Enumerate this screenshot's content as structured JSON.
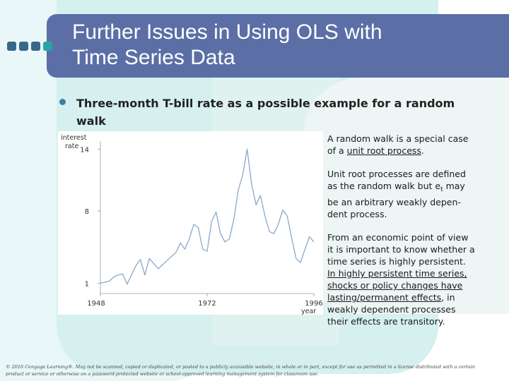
{
  "slide": {
    "title_line1": "Further Issues in Using OLS with",
    "title_line2": "Time Series Data",
    "bullet_line1": "Three-month T-bill rate as a possible example for a random",
    "bullet_line2": "walk"
  },
  "chart_data": {
    "type": "line",
    "ylabel_line1": "interest",
    "ylabel_line2": "rate",
    "xlabel": "year",
    "y_ticks": [
      1,
      8,
      14
    ],
    "x_ticks": [
      1948,
      1972,
      1996
    ],
    "xlim": [
      1948,
      1996
    ],
    "ylim": [
      0,
      14.5
    ],
    "series": [
      {
        "x": [
          1948,
          1949,
          1950,
          1951,
          1952,
          1953,
          1954,
          1955,
          1956,
          1957,
          1958,
          1959,
          1960,
          1961,
          1962,
          1963,
          1964,
          1965,
          1966,
          1967,
          1968,
          1969,
          1970,
          1971,
          1972,
          1973,
          1974,
          1975,
          1976,
          1977,
          1978,
          1979,
          1980,
          1981,
          1982,
          1983,
          1984,
          1985,
          1986,
          1987,
          1988,
          1989,
          1990,
          1991,
          1992,
          1993,
          1994,
          1995,
          1996
        ],
        "y": [
          1.0,
          1.1,
          1.2,
          1.6,
          1.8,
          1.9,
          0.9,
          1.8,
          2.7,
          3.3,
          1.8,
          3.4,
          2.9,
          2.4,
          2.8,
          3.2,
          3.6,
          4.0,
          4.9,
          4.3,
          5.3,
          6.7,
          6.4,
          4.3,
          4.1,
          7.0,
          7.9,
          5.8,
          5.0,
          5.3,
          7.2,
          10.0,
          11.5,
          14.0,
          10.6,
          8.6,
          9.5,
          7.5,
          6.0,
          5.8,
          6.7,
          8.1,
          7.5,
          5.4,
          3.4,
          3.0,
          4.3,
          5.5,
          5.0
        ]
      }
    ]
  },
  "notes": {
    "p1_a": "A random walk is a special case of a ",
    "p1_u": "unit root process",
    "p1_b": ".",
    "p2_a": "Unit root processes are defined as the random walk but e",
    "p2_sub": "t",
    "p2_b": " may be an arbitrary weakly depen-dent process.",
    "p3_a": "From an economic point of view it is important to know whether a time series is highly persistent. ",
    "p3_u": "In highly persistent time series, shocks or policy changes have lasting/permanent effects",
    "p3_b": ", in weakly dependent processes their effects are transitory."
  },
  "footer": {
    "text": "© 2016 Cengage Learning®. May not be scanned, copied or duplicated, or posted to a publicly accessible website, in whole or in part, except for use as permitted in a license distributed with a certain product or service or otherwise on a password-protected website or school-approved learning management system for classroom use."
  },
  "colors": {
    "title_bar": "#5b6fa6",
    "accent_dark": "#38678a",
    "accent_teal": "#2ba3a6",
    "line": "#8aa8cc"
  }
}
